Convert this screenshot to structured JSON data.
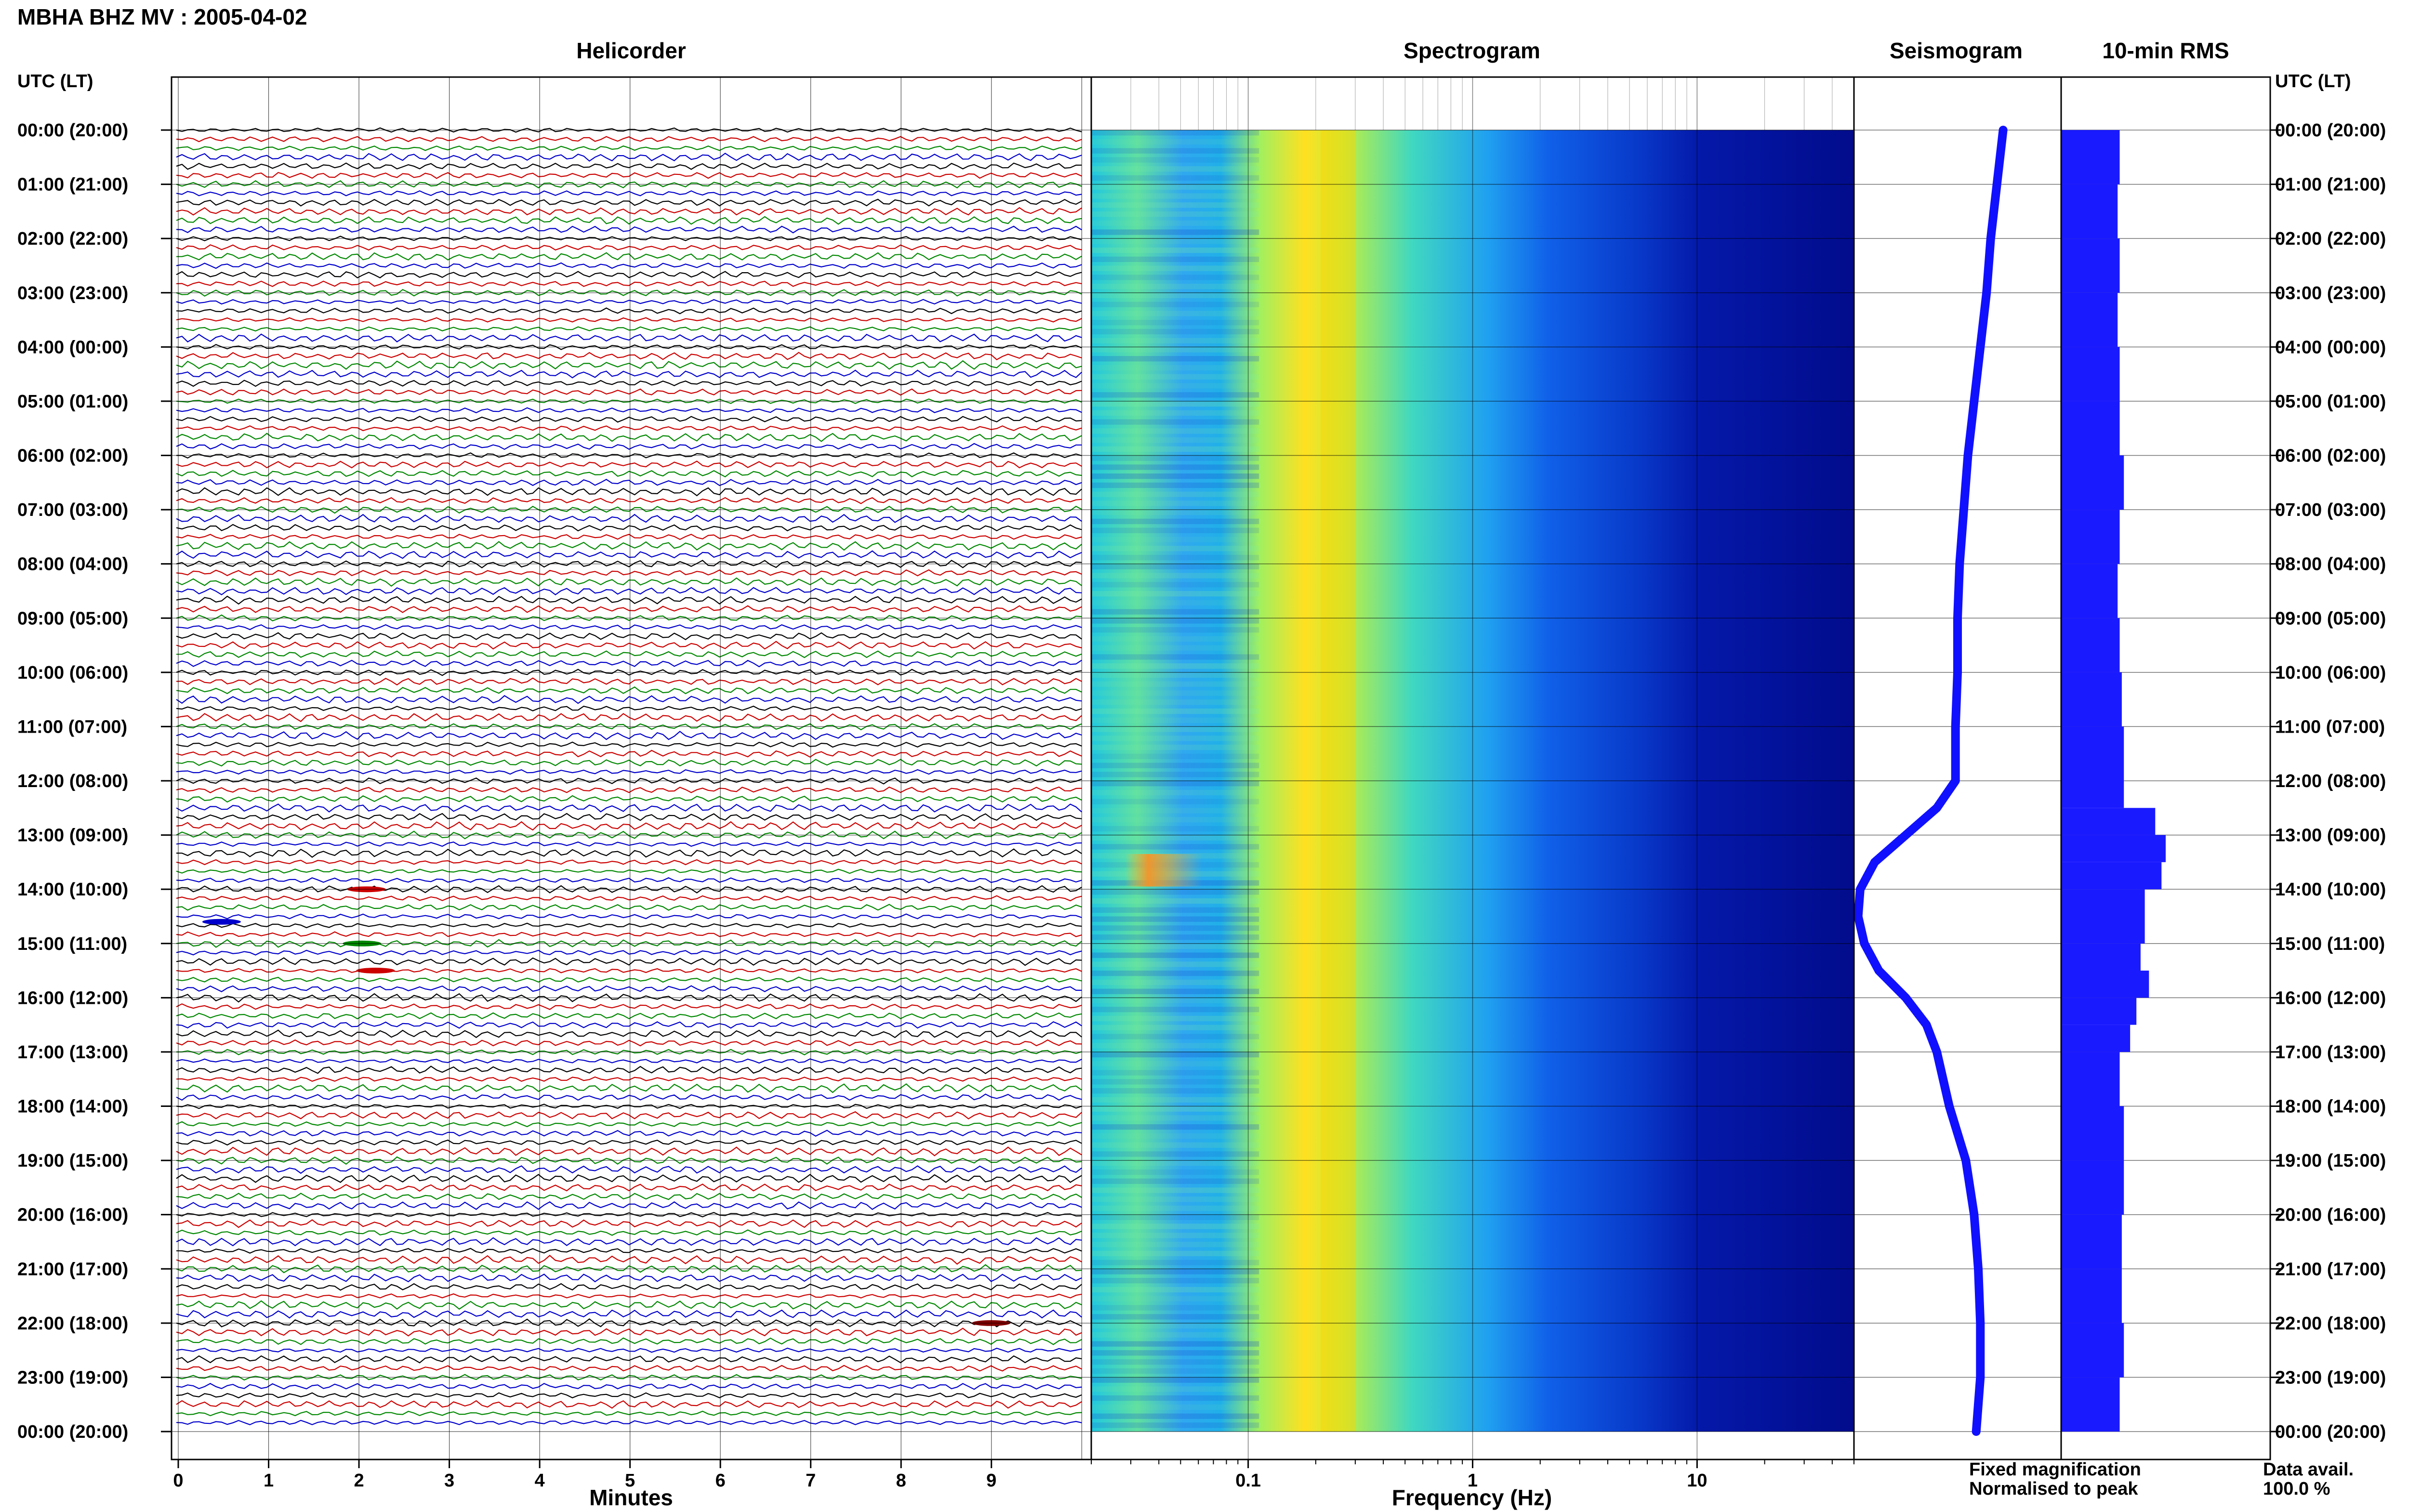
{
  "header": {
    "title": "MBHA BHZ MV : 2005-04-02"
  },
  "panels": {
    "helicorder": "Helicorder",
    "spectrogram": "Spectrogram",
    "seismogram": "Seismogram",
    "rms": "10-min RMS"
  },
  "axes": {
    "left_label": "UTC (LT)",
    "right_label": "UTC (LT)",
    "helicorder_xlabel": "Minutes",
    "spectrogram_xlabel": "Frequency (Hz)"
  },
  "legend": {
    "fixed": "Fixed magnification",
    "normalised": "Normalised to peak",
    "fixed_color": "#1010ff",
    "normalised_color": "#ff1010",
    "data_avail_label": "Data avail.",
    "data_avail_value": "100.0 %"
  },
  "colors": {
    "trace_cycle": [
      "#000000",
      "#cc0000",
      "#008800",
      "#0000cc"
    ],
    "bar_color": "#1a1aff",
    "spectrogram_low": "#00008b",
    "spectrogram_high": "#ffd000"
  },
  "chart_data": [
    {
      "type": "line",
      "name": "helicorder",
      "title": "Helicorder",
      "xlabel": "Minutes",
      "xlim": [
        0,
        10
      ],
      "x_ticks": [
        "0",
        "1",
        "2",
        "3",
        "4",
        "5",
        "6",
        "7",
        "8",
        "9"
      ],
      "y_ticks": [
        "00:00 (20:00)",
        "01:00 (21:00)",
        "02:00 (22:00)",
        "03:00 (23:00)",
        "04:00 (00:00)",
        "05:00 (01:00)",
        "06:00 (02:00)",
        "07:00 (03:00)",
        "08:00 (04:00)",
        "09:00 (05:00)",
        "10:00 (06:00)",
        "11:00 (07:00)",
        "12:00 (08:00)",
        "13:00 (09:00)",
        "14:00 (10:00)",
        "15:00 (11:00)",
        "16:00 (12:00)",
        "17:00 (13:00)",
        "18:00 (14:00)",
        "19:00 (15:00)",
        "20:00 (16:00)",
        "21:00 (17:00)",
        "22:00 (18:00)",
        "23:00 (19:00)",
        "00:00 (20:00)"
      ],
      "lines_per_hour": 6,
      "grid": true
    },
    {
      "type": "heatmap",
      "name": "spectrogram",
      "title": "Spectrogram",
      "xlabel": "Frequency (Hz)",
      "x_scale": "log",
      "xlim": [
        0.02,
        50
      ],
      "x_ticks": [
        "0.1",
        "1",
        "10"
      ],
      "peak_frequency_hz": 0.25,
      "grid": true
    },
    {
      "type": "line",
      "name": "seismogram",
      "title": "Seismogram",
      "y_hours": [
        0,
        1,
        2,
        3,
        4,
        5,
        6,
        7,
        8,
        9,
        10,
        11,
        12,
        12.5,
        13,
        13.5,
        14,
        14.5,
        15,
        15.5,
        16,
        16.5,
        17,
        18,
        19,
        20,
        21,
        22,
        23,
        24
      ],
      "x_rel": [
        0.72,
        0.69,
        0.66,
        0.64,
        0.61,
        0.58,
        0.55,
        0.53,
        0.51,
        0.5,
        0.5,
        0.49,
        0.49,
        0.4,
        0.25,
        0.1,
        0.03,
        0.02,
        0.05,
        0.12,
        0.25,
        0.35,
        0.4,
        0.46,
        0.54,
        0.58,
        0.6,
        0.61,
        0.61,
        0.59
      ]
    },
    {
      "type": "bar",
      "name": "10-min RMS",
      "title": "10-min RMS",
      "y_hours": [
        0,
        1,
        2,
        3,
        4,
        5,
        6,
        7,
        8,
        9,
        10,
        11,
        12,
        12.5,
        13,
        13.5,
        14,
        15,
        15.5,
        16,
        16.5,
        17,
        18,
        19,
        20,
        21,
        22,
        23,
        24
      ],
      "values_rel": [
        0.28,
        0.27,
        0.28,
        0.27,
        0.28,
        0.28,
        0.3,
        0.28,
        0.27,
        0.28,
        0.29,
        0.3,
        0.3,
        0.45,
        0.5,
        0.48,
        0.4,
        0.38,
        0.42,
        0.36,
        0.33,
        0.28,
        0.3,
        0.3,
        0.29,
        0.29,
        0.3,
        0.28,
        0.27
      ]
    }
  ]
}
